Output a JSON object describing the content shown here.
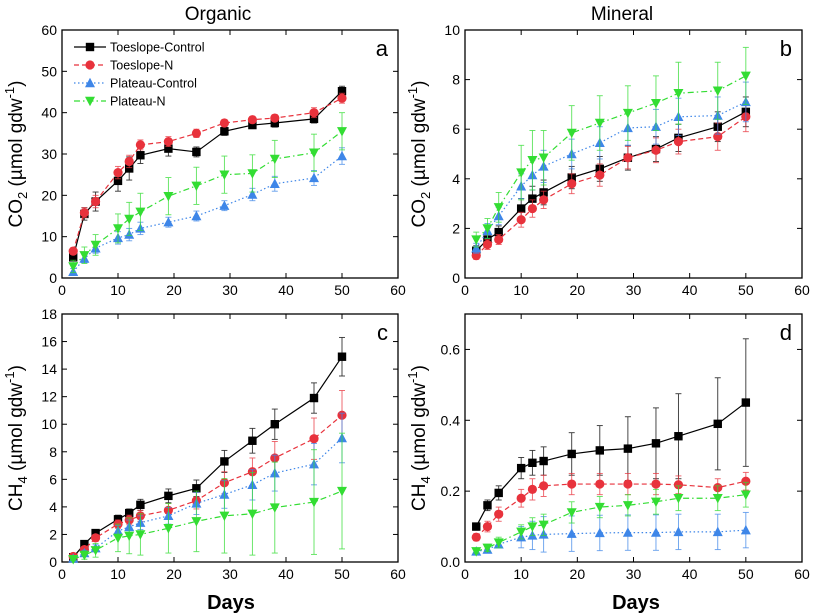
{
  "column_titles": [
    "Organic",
    "Mineral"
  ],
  "x_axis_label": "Days",
  "chart_data": [
    {
      "type": "line",
      "panel": "a",
      "column": "Organic",
      "ylabel": "CO2 (µmol gdw-1)",
      "ylabel_main": "CO",
      "ylabel_sub": "2",
      "ylabel_rest": " (µmol gdw",
      "ylabel_sup": "-1",
      "ylabel_close": ")",
      "xlabel": "",
      "xlim": [
        0,
        60
      ],
      "xticks": [
        0,
        10,
        20,
        30,
        40,
        50,
        60
      ],
      "ylim": [
        0,
        60
      ],
      "yticks": [
        0,
        10,
        20,
        30,
        40,
        50,
        60
      ],
      "x": [
        2,
        4,
        6,
        10,
        12,
        14,
        19,
        24,
        29,
        34,
        38,
        45,
        50
      ],
      "series": [
        {
          "name": "Toeslope-Control",
          "values": [
            5,
            15.5,
            18.5,
            23.5,
            26.5,
            29.7,
            31.3,
            30.5,
            35.5,
            37,
            37.5,
            38.5,
            45.2
          ],
          "err": [
            0.8,
            1.5,
            2.3,
            2.5,
            2.8,
            2,
            1.8,
            1.2,
            1,
            0.8,
            1,
            1,
            1.2
          ]
        },
        {
          "name": "Toeslope-N",
          "values": [
            6.5,
            15.8,
            18.5,
            25.5,
            28.2,
            32.2,
            33,
            35,
            37.5,
            38.3,
            38.7,
            40,
            43.5
          ],
          "err": [
            0.8,
            1.2,
            1.5,
            1.5,
            1.5,
            1.2,
            1.2,
            1,
            0.8,
            0.8,
            0.8,
            1.2,
            1.2
          ]
        },
        {
          "name": "Plateau-Control",
          "values": [
            1.5,
            4.7,
            7.2,
            9.7,
            10.5,
            12,
            13.5,
            15,
            17.5,
            20.2,
            22.8,
            24.2,
            29.5
          ],
          "err": [
            0.8,
            1,
            1.2,
            1.5,
            1.5,
            1.5,
            1.2,
            1.2,
            1.2,
            1.5,
            1.8,
            1.8,
            2
          ]
        },
        {
          "name": "Plateau-N",
          "values": [
            2.8,
            5.5,
            8,
            12,
            14.3,
            16,
            19.8,
            22.3,
            25,
            25.3,
            28.8,
            30.3,
            35.5
          ],
          "err": [
            1.5,
            2,
            2.5,
            3.5,
            4,
            4.5,
            4.5,
            4.5,
            4.5,
            4.5,
            4.5,
            4.5,
            4.5
          ]
        }
      ]
    },
    {
      "type": "line",
      "panel": "b",
      "column": "Mineral",
      "ylabel": "CO2 (µmol gdw-1)",
      "ylabel_main": "CO",
      "ylabel_sub": "2",
      "ylabel_rest": " (µmol gdw",
      "ylabel_sup": "-1",
      "ylabel_close": ")",
      "xlabel": "",
      "xlim": [
        0,
        60
      ],
      "xticks": [
        0,
        10,
        20,
        30,
        40,
        50,
        60
      ],
      "ylim": [
        0,
        10
      ],
      "yticks": [
        0,
        2,
        4,
        6,
        8,
        10
      ],
      "x": [
        2,
        4,
        6,
        10,
        12,
        14,
        19,
        24,
        29,
        34,
        38,
        45,
        50
      ],
      "series": [
        {
          "name": "Toeslope-Control",
          "values": [
            1.1,
            1.55,
            1.85,
            2.8,
            3.2,
            3.45,
            4.05,
            4.4,
            4.85,
            5.2,
            5.65,
            6.1,
            6.7
          ],
          "err": [
            0.2,
            0.2,
            0.25,
            0.4,
            0.5,
            0.5,
            0.45,
            0.5,
            0.5,
            0.5,
            0.55,
            0.6,
            0.6
          ]
        },
        {
          "name": "Toeslope-N",
          "values": [
            0.9,
            1.35,
            1.55,
            2.35,
            2.8,
            3.15,
            3.8,
            4.15,
            4.85,
            5.15,
            5.5,
            5.7,
            6.5
          ],
          "err": [
            0.15,
            0.2,
            0.2,
            0.3,
            0.35,
            0.35,
            0.4,
            0.45,
            0.45,
            0.5,
            0.5,
            0.55,
            0.6
          ]
        },
        {
          "name": "Plateau-Control",
          "values": [
            1.2,
            1.9,
            2.5,
            3.7,
            4.15,
            4.5,
            5,
            5.45,
            6.05,
            6.1,
            6.5,
            6.55,
            7.1
          ],
          "err": [
            0.2,
            0.3,
            0.35,
            0.5,
            0.6,
            0.65,
            0.6,
            0.65,
            0.7,
            0.7,
            0.75,
            0.75,
            0.8
          ]
        },
        {
          "name": "Plateau-N",
          "values": [
            1.55,
            2,
            2.85,
            4.25,
            4.75,
            4.85,
            5.85,
            6.25,
            6.65,
            7.05,
            7.45,
            7.55,
            8.15
          ],
          "err": [
            0.3,
            0.4,
            0.6,
            1.1,
            1.2,
            1.1,
            1.1,
            1.1,
            1.1,
            1.1,
            1.25,
            1.15,
            1.15
          ]
        }
      ]
    },
    {
      "type": "line",
      "panel": "c",
      "column": "Organic",
      "ylabel": "CH4 (µmol gdw-1)",
      "ylabel_main": "CH",
      "ylabel_sub": "4",
      "ylabel_rest": " (µmol gdw",
      "ylabel_sup": "-1",
      "ylabel_close": ")",
      "xlabel": "Days",
      "xlim": [
        0,
        60
      ],
      "xticks": [
        0,
        10,
        20,
        30,
        40,
        50,
        60
      ],
      "ylim": [
        0,
        18
      ],
      "yticks": [
        0,
        2,
        4,
        6,
        8,
        10,
        12,
        14,
        16,
        18
      ],
      "x": [
        2,
        4,
        6,
        10,
        12,
        14,
        19,
        24,
        29,
        34,
        38,
        45,
        50
      ],
      "series": [
        {
          "name": "Toeslope-Control",
          "values": [
            0.35,
            1.3,
            2.1,
            3.1,
            3.55,
            4.15,
            4.8,
            5.35,
            7.3,
            8.8,
            10,
            11.9,
            14.9
          ],
          "err": [
            0.1,
            0.2,
            0.2,
            0.3,
            0.3,
            0.4,
            0.5,
            0.6,
            0.8,
            0.9,
            1.1,
            1.1,
            1.4
          ]
        },
        {
          "name": "Toeslope-N",
          "values": [
            0.4,
            0.9,
            1.75,
            2.75,
            3.05,
            3.35,
            3.75,
            4.45,
            5.75,
            6.55,
            7.55,
            8.95,
            10.65
          ],
          "err": [
            0.1,
            0.2,
            0.25,
            0.3,
            0.35,
            0.4,
            0.5,
            0.6,
            0.8,
            1,
            1.2,
            1.5,
            1.8
          ]
        },
        {
          "name": "Plateau-Control",
          "values": [
            0.25,
            0.65,
            1,
            2.25,
            2.55,
            2.85,
            3.35,
            4.25,
            4.9,
            5.6,
            6.45,
            7.1,
            9
          ],
          "err": [
            0.1,
            0.2,
            0.25,
            0.4,
            0.5,
            0.5,
            0.6,
            0.8,
            1,
            1.1,
            1.3,
            1.5,
            1.8
          ]
        },
        {
          "name": "Plateau-N",
          "values": [
            0.2,
            0.5,
            0.85,
            1.75,
            1.9,
            2,
            2.45,
            2.95,
            3.35,
            3.5,
            3.95,
            4.35,
            5.15
          ],
          "err": [
            0.1,
            0.3,
            0.5,
            1,
            1.3,
            1.5,
            1.8,
            2.2,
            2.7,
            3,
            3.3,
            3.8,
            4.2
          ]
        }
      ]
    },
    {
      "type": "line",
      "panel": "d",
      "column": "Mineral",
      "ylabel": "CH4 (µmol gdw-1)",
      "ylabel_main": "CH",
      "ylabel_sub": "4",
      "ylabel_rest": " (µmol gdw",
      "ylabel_sup": "-1",
      "ylabel_close": ")",
      "xlabel": "Days",
      "xlim": [
        0,
        60
      ],
      "xticks": [
        0,
        10,
        20,
        30,
        40,
        50,
        60
      ],
      "ylim": [
        0,
        0.7
      ],
      "yticks": [
        0.0,
        0.2,
        0.4,
        0.6
      ],
      "ytick_decimals": 1,
      "x": [
        2,
        4,
        6,
        10,
        12,
        14,
        19,
        24,
        29,
        34,
        38,
        45,
        50
      ],
      "series": [
        {
          "name": "Toeslope-Control",
          "values": [
            0.1,
            0.16,
            0.195,
            0.265,
            0.28,
            0.285,
            0.305,
            0.315,
            0.32,
            0.335,
            0.355,
            0.39,
            0.45
          ],
          "err": [
            0.01,
            0.015,
            0.02,
            0.03,
            0.035,
            0.04,
            0.06,
            0.07,
            0.09,
            0.1,
            0.12,
            0.13,
            0.18
          ]
        },
        {
          "name": "Toeslope-N",
          "values": [
            0.07,
            0.1,
            0.135,
            0.18,
            0.205,
            0.215,
            0.22,
            0.22,
            0.22,
            0.22,
            0.218,
            0.21,
            0.228
          ],
          "err": [
            0.01,
            0.015,
            0.02,
            0.025,
            0.03,
            0.03,
            0.03,
            0.03,
            0.03,
            0.03,
            0.025,
            0.025,
            0.025
          ]
        },
        {
          "name": "Plateau-Control",
          "values": [
            0.03,
            0.035,
            0.05,
            0.07,
            0.075,
            0.078,
            0.08,
            0.082,
            0.083,
            0.083,
            0.085,
            0.085,
            0.09
          ],
          "err": [
            0.005,
            0.008,
            0.01,
            0.03,
            0.04,
            0.05,
            0.05,
            0.05,
            0.05,
            0.05,
            0.05,
            0.05,
            0.05
          ]
        },
        {
          "name": "Plateau-N",
          "values": [
            0.03,
            0.04,
            0.055,
            0.085,
            0.1,
            0.105,
            0.14,
            0.155,
            0.16,
            0.17,
            0.18,
            0.18,
            0.19
          ],
          "err": [
            0.005,
            0.01,
            0.015,
            0.02,
            0.025,
            0.03,
            0.03,
            0.03,
            0.03,
            0.035,
            0.035,
            0.035,
            0.035
          ]
        }
      ]
    }
  ],
  "series_styles": {
    "Toeslope-Control": {
      "color": "#000000",
      "marker": "square",
      "dash": "solid"
    },
    "Toeslope-N": {
      "color": "#e8323c",
      "marker": "circle",
      "dash": "dash"
    },
    "Plateau-Control": {
      "color": "#3e86e8",
      "marker": "triangle-up",
      "dash": "dot"
    },
    "Plateau-N": {
      "color": "#33dd33",
      "marker": "triangle-down",
      "dash": "dashdot"
    }
  },
  "legend": {
    "panel": "a",
    "placement": "top-left",
    "entries": [
      "Toeslope-Control",
      "Toeslope-N",
      "Plateau-Control",
      "Plateau-N"
    ]
  }
}
